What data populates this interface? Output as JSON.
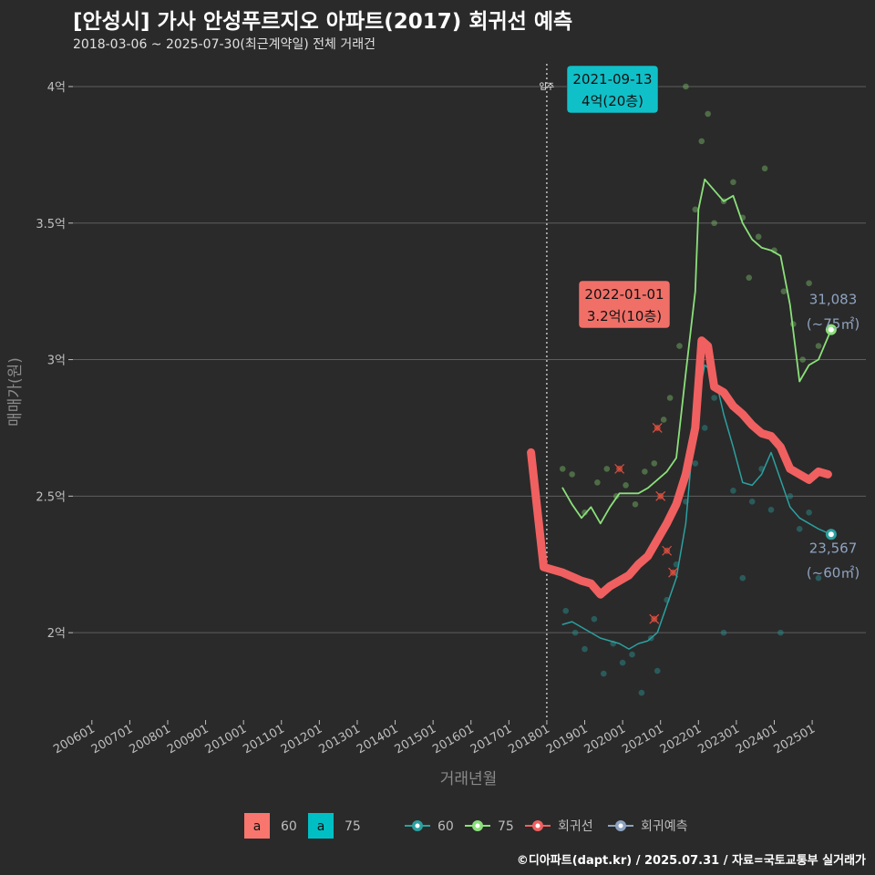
{
  "header": {
    "title": "[안성시] 가사 안성푸르지오 아파트(2017) 회귀선 예측",
    "subtitle": "2018-03-06 ~ 2025-07-30(최근계약일) 전체 거래건"
  },
  "footer": {
    "credit": "©디아파트(dapt.kr) / 2025.07.31 / 자료=국토교통부 실거래가"
  },
  "chart_data": {
    "type": "line",
    "xlabel": "거래년월",
    "ylabel": "매매가(원)",
    "x_ticks": [
      "200601",
      "200701",
      "200801",
      "200901",
      "201001",
      "201101",
      "201201",
      "201301",
      "201401",
      "201501",
      "201601",
      "201701",
      "201801",
      "201901",
      "202001",
      "202101",
      "202201",
      "202301",
      "202401",
      "202501"
    ],
    "y_ticks": [
      {
        "value": 2.0,
        "label": "2억"
      },
      {
        "value": 2.5,
        "label": "2.5억"
      },
      {
        "value": 3.0,
        "label": "3억"
      },
      {
        "value": 3.5,
        "label": "3.5억"
      },
      {
        "value": 4.0,
        "label": "4억"
      }
    ],
    "xlim": [
      "2005-07",
      "2026-06"
    ],
    "ylim": [
      1.68,
      4.1
    ],
    "vline": {
      "date": "2018-01",
      "label": "입주"
    },
    "series": [
      {
        "name": "75",
        "color": "#8be07a",
        "points": [
          [
            "2018-06",
            2.53
          ],
          [
            "2018-09",
            2.47
          ],
          [
            "2018-12",
            2.42
          ],
          [
            "2019-03",
            2.46
          ],
          [
            "2019-06",
            2.4
          ],
          [
            "2019-09",
            2.46
          ],
          [
            "2019-12",
            2.51
          ],
          [
            "2020-03",
            2.51
          ],
          [
            "2020-06",
            2.51
          ],
          [
            "2020-09",
            2.53
          ],
          [
            "2020-12",
            2.56
          ],
          [
            "2021-03",
            2.59
          ],
          [
            "2021-06",
            2.64
          ],
          [
            "2021-09",
            2.95
          ],
          [
            "2021-12",
            3.25
          ],
          [
            "2022-01",
            3.55
          ],
          [
            "2022-03",
            3.66
          ],
          [
            "2022-06",
            3.62
          ],
          [
            "2022-09",
            3.58
          ],
          [
            "2022-12",
            3.6
          ],
          [
            "2023-03",
            3.5
          ],
          [
            "2023-06",
            3.44
          ],
          [
            "2023-09",
            3.41
          ],
          [
            "2023-12",
            3.4
          ],
          [
            "2024-03",
            3.38
          ],
          [
            "2024-06",
            3.2
          ],
          [
            "2024-09",
            2.92
          ],
          [
            "2024-12",
            2.98
          ],
          [
            "2025-03",
            3.0
          ],
          [
            "2025-07",
            3.11
          ]
        ]
      },
      {
        "name": "60",
        "color": "#2ca0a0",
        "points": [
          [
            "2018-06",
            2.03
          ],
          [
            "2018-09",
            2.04
          ],
          [
            "2018-12",
            2.02
          ],
          [
            "2019-03",
            2.0
          ],
          [
            "2019-06",
            1.98
          ],
          [
            "2019-09",
            1.97
          ],
          [
            "2019-12",
            1.96
          ],
          [
            "2020-03",
            1.94
          ],
          [
            "2020-06",
            1.96
          ],
          [
            "2020-09",
            1.97
          ],
          [
            "2020-12",
            2.0
          ],
          [
            "2021-03",
            2.1
          ],
          [
            "2021-06",
            2.2
          ],
          [
            "2021-09",
            2.4
          ],
          [
            "2021-12",
            2.8
          ],
          [
            "2022-03",
            2.98
          ],
          [
            "2022-06",
            2.95
          ],
          [
            "2022-09",
            2.8
          ],
          [
            "2022-12",
            2.68
          ],
          [
            "2023-03",
            2.55
          ],
          [
            "2023-06",
            2.54
          ],
          [
            "2023-09",
            2.58
          ],
          [
            "2023-12",
            2.66
          ],
          [
            "2024-03",
            2.56
          ],
          [
            "2024-06",
            2.46
          ],
          [
            "2024-09",
            2.42
          ],
          [
            "2024-12",
            2.4
          ],
          [
            "2025-03",
            2.38
          ],
          [
            "2025-07",
            2.36
          ]
        ]
      },
      {
        "name": "회귀선",
        "color": "#f06060",
        "points": [
          [
            "2017-08",
            2.66
          ],
          [
            "2017-10",
            2.45
          ],
          [
            "2017-12",
            2.24
          ],
          [
            "2018-06",
            2.22
          ],
          [
            "2018-12",
            2.19
          ],
          [
            "2019-03",
            2.18
          ],
          [
            "2019-06",
            2.14
          ],
          [
            "2019-09",
            2.17
          ],
          [
            "2019-12",
            2.19
          ],
          [
            "2020-03",
            2.21
          ],
          [
            "2020-06",
            2.25
          ],
          [
            "2020-09",
            2.28
          ],
          [
            "2020-12",
            2.34
          ],
          [
            "2021-03",
            2.4
          ],
          [
            "2021-06",
            2.47
          ],
          [
            "2021-09",
            2.58
          ],
          [
            "2021-12",
            2.75
          ],
          [
            "2022-02",
            3.07
          ],
          [
            "2022-04",
            3.05
          ],
          [
            "2022-06",
            2.9
          ],
          [
            "2022-09",
            2.88
          ],
          [
            "2022-12",
            2.83
          ],
          [
            "2023-03",
            2.8
          ],
          [
            "2023-06",
            2.76
          ],
          [
            "2023-09",
            2.73
          ],
          [
            "2023-12",
            2.72
          ],
          [
            "2024-03",
            2.68
          ],
          [
            "2024-06",
            2.6
          ],
          [
            "2024-09",
            2.58
          ],
          [
            "2024-12",
            2.56
          ],
          [
            "2025-03",
            2.59
          ],
          [
            "2025-06",
            2.58
          ]
        ]
      }
    ],
    "scatter": {
      "75": [
        [
          "2018-06",
          2.6
        ],
        [
          "2018-09",
          2.58
        ],
        [
          "2019-01",
          2.44
        ],
        [
          "2019-05",
          2.55
        ],
        [
          "2019-08",
          2.6
        ],
        [
          "2019-11",
          2.5
        ],
        [
          "2020-02",
          2.54
        ],
        [
          "2020-05",
          2.47
        ],
        [
          "2020-08",
          2.59
        ],
        [
          "2020-11",
          2.62
        ],
        [
          "2021-02",
          2.78
        ],
        [
          "2021-04",
          2.86
        ],
        [
          "2021-07",
          3.05
        ],
        [
          "2021-09",
          4.0
        ],
        [
          "2021-12",
          3.55
        ],
        [
          "2022-02",
          3.8
        ],
        [
          "2022-04",
          3.9
        ],
        [
          "2022-06",
          3.5
        ],
        [
          "2022-09",
          3.58
        ],
        [
          "2022-12",
          3.65
        ],
        [
          "2023-03",
          3.52
        ],
        [
          "2023-05",
          3.3
        ],
        [
          "2023-08",
          3.45
        ],
        [
          "2023-10",
          3.7
        ],
        [
          "2024-01",
          3.4
        ],
        [
          "2024-04",
          3.25
        ],
        [
          "2024-07",
          3.13
        ],
        [
          "2024-10",
          3.0
        ],
        [
          "2024-12",
          3.28
        ],
        [
          "2025-03",
          3.05
        ]
      ],
      "60": [
        [
          "2018-07",
          2.08
        ],
        [
          "2018-10",
          2.0
        ],
        [
          "2019-01",
          1.94
        ],
        [
          "2019-04",
          2.05
        ],
        [
          "2019-07",
          1.85
        ],
        [
          "2019-10",
          1.96
        ],
        [
          "2020-01",
          1.89
        ],
        [
          "2020-04",
          1.92
        ],
        [
          "2020-07",
          1.78
        ],
        [
          "2020-10",
          1.98
        ],
        [
          "2020-12",
          1.86
        ],
        [
          "2021-03",
          2.12
        ],
        [
          "2021-06",
          2.25
        ],
        [
          "2021-09",
          2.48
        ],
        [
          "2021-12",
          2.62
        ],
        [
          "2022-03",
          2.75
        ],
        [
          "2022-06",
          2.86
        ],
        [
          "2022-09",
          2.0
        ],
        [
          "2022-12",
          2.52
        ],
        [
          "2023-03",
          2.2
        ],
        [
          "2023-06",
          2.48
        ],
        [
          "2023-09",
          2.6
        ],
        [
          "2023-12",
          2.45
        ],
        [
          "2024-03",
          2.0
        ],
        [
          "2024-06",
          2.5
        ],
        [
          "2024-09",
          2.38
        ],
        [
          "2024-12",
          2.44
        ],
        [
          "2025-03",
          2.2
        ]
      ],
      "trades": [
        [
          "2019-12",
          2.6
        ],
        [
          "2020-12",
          2.75
        ],
        [
          "2021-01",
          2.5
        ],
        [
          "2021-03",
          2.3
        ],
        [
          "2021-05",
          2.22
        ],
        [
          "2020-11",
          2.05
        ]
      ]
    },
    "end_points": [
      {
        "series": "75",
        "date": "2025-07",
        "value": 3.11,
        "label_line1": "31,083",
        "label_line2": "(~75㎡)"
      },
      {
        "series": "60",
        "date": "2025-07",
        "value": 2.36,
        "label_line1": "23,567",
        "label_line2": "(~60㎡)"
      }
    ],
    "annotations": [
      {
        "date_label": "2021-09-13",
        "value_label": "4억(20층)",
        "color": "#10c0c8",
        "at": [
          "2021-09",
          4.0
        ]
      },
      {
        "date_label": "2022-01-01",
        "value_label": "3.2억(10층)",
        "color": "#f07068",
        "at": [
          "2022-01",
          3.1
        ]
      }
    ],
    "legend": {
      "placement": "bottom",
      "fill_items": [
        {
          "key": "a",
          "label": "60",
          "color": "#f8766d"
        },
        {
          "key": "a",
          "label": "75",
          "color": "#00bfc4"
        }
      ],
      "line_items": [
        {
          "label": "60",
          "color": "#2ca0a0"
        },
        {
          "label": "75",
          "color": "#8be07a"
        },
        {
          "label": "회귀선",
          "color": "#f06060"
        },
        {
          "label": "회귀예측",
          "color": "#8fa3c0"
        }
      ]
    }
  }
}
